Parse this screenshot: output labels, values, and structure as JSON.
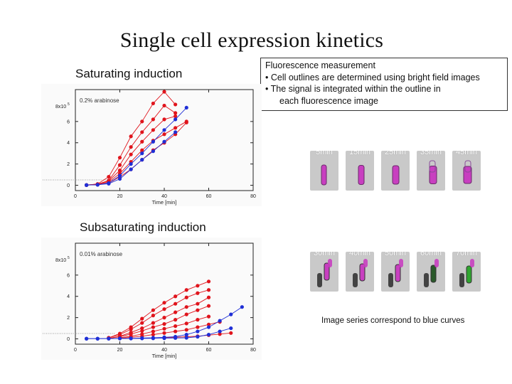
{
  "title": "Single cell expression kinetics",
  "sections": {
    "saturating": "Saturating induction",
    "subsaturating": "Subsaturating induction"
  },
  "info_box": {
    "heading": "Fluorescence measurement",
    "bullet1": "• Cell outlines are determined using bright field images",
    "bullet2": "• The signal is integrated within the outline in",
    "bullet2_cont": "each fluorescence image"
  },
  "time_series_top": [
    "5min",
    "15min",
    "25min",
    "35min",
    "45min"
  ],
  "time_series_bottom": [
    "30min",
    "40min",
    "50min",
    "60min",
    "70min"
  ],
  "caption": "Image series correspond to blue curves",
  "colors": {
    "red": "#e0141c",
    "blue": "#1f2fd6",
    "cell": "#c83fc0",
    "cell_green": "#2fa52f"
  },
  "chart_data": [
    {
      "type": "line",
      "name": "saturating",
      "annotation": "0.2% arabinose",
      "xlabel": "Time [min]",
      "ylabel": "8x10^5",
      "y_exp_label": "8x10",
      "y_exp_sup": "5",
      "xlim": [
        0,
        80
      ],
      "ylim": [
        -0.5,
        9
      ],
      "x_ticks": [
        0,
        20,
        40,
        60,
        80
      ],
      "y_ticks": [
        0,
        2,
        4,
        6
      ],
      "series": [
        {
          "name": "red-1",
          "color": "red",
          "points": [
            [
              5,
              0.02
            ],
            [
              10,
              0.12
            ],
            [
              15,
              0.8
            ],
            [
              20,
              2.6
            ],
            [
              25,
              4.6
            ],
            [
              30,
              6.0
            ],
            [
              35,
              7.7
            ],
            [
              40,
              8.8
            ],
            [
              45,
              7.6
            ]
          ]
        },
        {
          "name": "red-2",
          "color": "red",
          "points": [
            [
              5,
              0.02
            ],
            [
              10,
              0.1
            ],
            [
              15,
              0.45
            ],
            [
              20,
              1.9
            ],
            [
              25,
              3.6
            ],
            [
              30,
              5.0
            ],
            [
              35,
              6.2
            ],
            [
              40,
              7.5
            ],
            [
              45,
              6.8
            ]
          ]
        },
        {
          "name": "red-3",
          "color": "red",
          "points": [
            [
              5,
              0.02
            ],
            [
              10,
              0.1
            ],
            [
              15,
              0.4
            ],
            [
              20,
              1.4
            ],
            [
              25,
              2.9
            ],
            [
              30,
              4.1
            ],
            [
              35,
              5.2
            ],
            [
              40,
              6.2
            ],
            [
              45,
              6.5
            ]
          ]
        },
        {
          "name": "red-4",
          "color": "red",
          "points": [
            [
              5,
              0.02
            ],
            [
              10,
              0.08
            ],
            [
              15,
              0.3
            ],
            [
              20,
              1.1
            ],
            [
              25,
              2.2
            ],
            [
              30,
              3.3
            ],
            [
              35,
              4.2
            ],
            [
              40,
              4.8
            ],
            [
              45,
              5.4
            ],
            [
              50,
              6.0
            ]
          ]
        },
        {
          "name": "red-5",
          "color": "red",
          "points": [
            [
              5,
              0.02
            ],
            [
              10,
              0.05
            ],
            [
              15,
              0.2
            ],
            [
              20,
              0.8
            ],
            [
              25,
              1.5
            ],
            [
              30,
              2.4
            ],
            [
              35,
              3.3
            ],
            [
              40,
              4.0
            ],
            [
              45,
              4.8
            ],
            [
              50,
              5.9
            ]
          ]
        },
        {
          "name": "blue-1",
          "color": "blue",
          "points": [
            [
              5,
              0.02
            ],
            [
              10,
              0.05
            ],
            [
              15,
              0.2
            ],
            [
              20,
              0.9
            ],
            [
              25,
              2.0
            ],
            [
              30,
              3.0
            ],
            [
              35,
              4.1
            ],
            [
              40,
              5.2
            ],
            [
              45,
              6.2
            ],
            [
              50,
              7.3
            ]
          ]
        },
        {
          "name": "blue-2",
          "color": "blue",
          "points": [
            [
              5,
              0.02
            ],
            [
              10,
              0.05
            ],
            [
              15,
              0.15
            ],
            [
              20,
              0.6
            ],
            [
              25,
              1.5
            ],
            [
              30,
              2.4
            ],
            [
              35,
              3.2
            ],
            [
              40,
              4.1
            ],
            [
              45,
              5.0
            ]
          ]
        }
      ]
    },
    {
      "type": "line",
      "name": "subsaturating",
      "annotation": "0.01% arabinose",
      "xlabel": "Time [min]",
      "ylabel": "8x10^5",
      "y_exp_label": "8x10",
      "y_exp_sup": "5",
      "xlim": [
        0,
        80
      ],
      "ylim": [
        -0.5,
        9
      ],
      "x_ticks": [
        0,
        20,
        40,
        60,
        80
      ],
      "y_ticks": [
        0,
        2,
        4,
        6
      ],
      "series": [
        {
          "name": "red-1",
          "color": "red",
          "points": [
            [
              15,
              0.1
            ],
            [
              20,
              0.5
            ],
            [
              25,
              1.1
            ],
            [
              30,
              1.9
            ],
            [
              35,
              2.7
            ],
            [
              40,
              3.4
            ],
            [
              45,
              4.0
            ],
            [
              50,
              4.6
            ],
            [
              55,
              5.0
            ],
            [
              60,
              5.4
            ]
          ]
        },
        {
          "name": "red-2",
          "color": "red",
          "points": [
            [
              15,
              0.1
            ],
            [
              20,
              0.4
            ],
            [
              25,
              0.9
            ],
            [
              30,
              1.5
            ],
            [
              35,
              2.2
            ],
            [
              40,
              2.8
            ],
            [
              45,
              3.3
            ],
            [
              50,
              3.9
            ],
            [
              55,
              4.3
            ],
            [
              60,
              4.6
            ]
          ]
        },
        {
          "name": "red-3",
          "color": "red",
          "points": [
            [
              15,
              0.05
            ],
            [
              20,
              0.25
            ],
            [
              25,
              0.6
            ],
            [
              30,
              1.0
            ],
            [
              35,
              1.5
            ],
            [
              40,
              2.0
            ],
            [
              45,
              2.5
            ],
            [
              50,
              3.0
            ],
            [
              55,
              3.3
            ],
            [
              60,
              3.9
            ]
          ]
        },
        {
          "name": "red-4",
          "color": "red",
          "points": [
            [
              15,
              0.05
            ],
            [
              20,
              0.2
            ],
            [
              25,
              0.45
            ],
            [
              30,
              0.75
            ],
            [
              35,
              1.1
            ],
            [
              40,
              1.4
            ],
            [
              45,
              1.8
            ],
            [
              50,
              2.3
            ],
            [
              55,
              2.7
            ],
            [
              60,
              3.1
            ]
          ]
        },
        {
          "name": "red-5",
          "color": "red",
          "points": [
            [
              20,
              0.1
            ],
            [
              25,
              0.25
            ],
            [
              30,
              0.45
            ],
            [
              35,
              0.7
            ],
            [
              40,
              0.95
            ],
            [
              45,
              1.2
            ],
            [
              50,
              1.45
            ],
            [
              55,
              1.8
            ],
            [
              60,
              2.1
            ]
          ]
        },
        {
          "name": "red-6",
          "color": "red",
          "points": [
            [
              20,
              0.05
            ],
            [
              25,
              0.15
            ],
            [
              30,
              0.25
            ],
            [
              35,
              0.4
            ],
            [
              40,
              0.55
            ],
            [
              45,
              0.7
            ],
            [
              50,
              0.85
            ],
            [
              55,
              1.1
            ],
            [
              60,
              1.35
            ],
            [
              65,
              1.6
            ]
          ]
        },
        {
          "name": "red-7",
          "color": "red",
          "points": [
            [
              40,
              0.1
            ],
            [
              45,
              0.15
            ],
            [
              50,
              0.2
            ],
            [
              55,
              0.25
            ],
            [
              60,
              0.35
            ],
            [
              65,
              0.45
            ],
            [
              70,
              0.55
            ]
          ]
        },
        {
          "name": "blue-1",
          "color": "blue",
          "points": [
            [
              5,
              0.02
            ],
            [
              10,
              0.02
            ],
            [
              15,
              0.03
            ],
            [
              20,
              0.05
            ],
            [
              25,
              0.05
            ],
            [
              30,
              0.08
            ],
            [
              35,
              0.1
            ],
            [
              40,
              0.15
            ],
            [
              45,
              0.2
            ],
            [
              50,
              0.4
            ],
            [
              55,
              0.7
            ],
            [
              60,
              1.1
            ],
            [
              65,
              1.7
            ],
            [
              70,
              2.3
            ],
            [
              75,
              3.0
            ]
          ]
        },
        {
          "name": "blue-2",
          "color": "blue",
          "points": [
            [
              5,
              0.02
            ],
            [
              10,
              0.02
            ],
            [
              15,
              0.02
            ],
            [
              20,
              0.03
            ],
            [
              25,
              0.03
            ],
            [
              30,
              0.04
            ],
            [
              35,
              0.05
            ],
            [
              40,
              0.06
            ],
            [
              45,
              0.08
            ],
            [
              50,
              0.1
            ],
            [
              55,
              0.2
            ],
            [
              60,
              0.4
            ],
            [
              65,
              0.7
            ],
            [
              70,
              1.0
            ]
          ]
        }
      ]
    }
  ]
}
